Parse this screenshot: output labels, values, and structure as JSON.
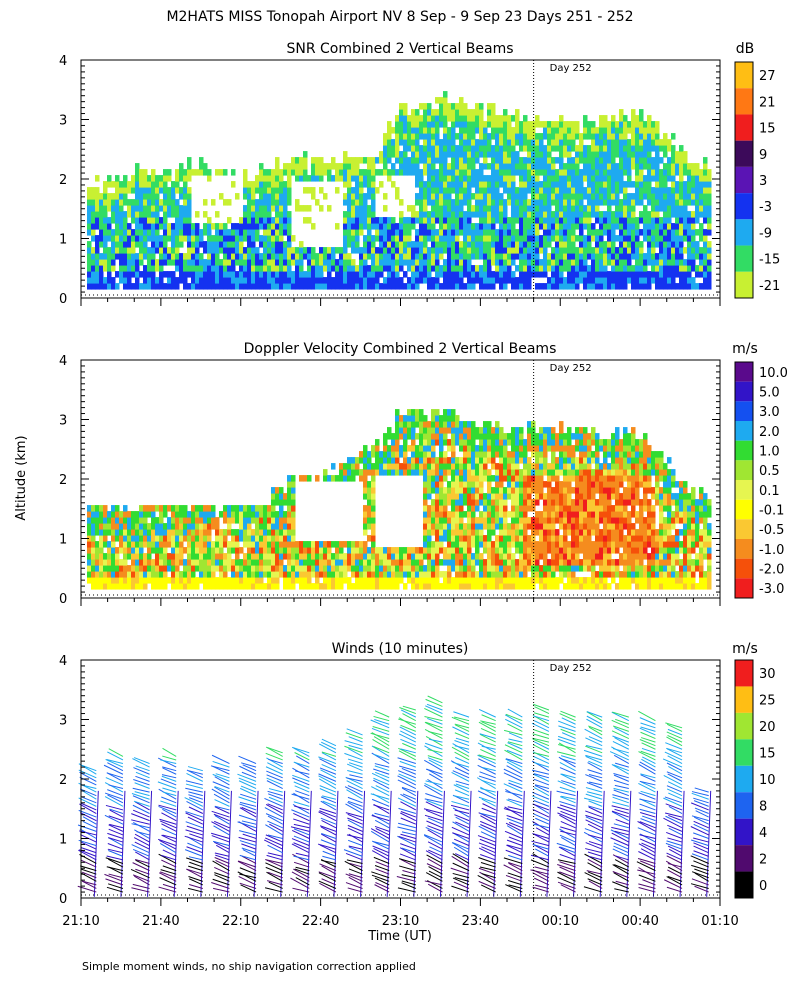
{
  "title": "M2HATS MISS Tonopah Airport NV   8 Sep -  9 Sep 23 Days 251 - 252",
  "footnote": "Simple moment winds, no ship navigation correction applied",
  "ylabel": "Altitude (km)",
  "xlabel": "Time (UT)",
  "x_ticks": [
    "21:10",
    "21:40",
    "22:10",
    "22:40",
    "23:10",
    "23:40",
    "00:10",
    "00:40",
    "01:10"
  ],
  "y_ticks": [
    "0",
    "1",
    "2",
    "3",
    "4"
  ],
  "day_marker_label": "Day 252",
  "panels": [
    {
      "title": "SNR Combined 2 Vertical Beams",
      "unit": "dB",
      "colorbar_labels": [
        "27",
        "21",
        "15",
        "9",
        "3",
        "-3",
        "-9",
        "-15",
        "-21"
      ]
    },
    {
      "title": "Doppler Velocity Combined 2 Vertical Beams",
      "unit": "m/s",
      "colorbar_labels": [
        "10.0",
        "5.0",
        "3.0",
        "2.0",
        "1.0",
        "0.5",
        "0.1",
        "-0.1",
        "-0.5",
        "-1.0",
        "-2.0",
        "-3.0"
      ]
    },
    {
      "title": "Winds (10 minutes)",
      "unit": "m/s",
      "colorbar_labels": [
        "30",
        "25",
        "20",
        "15",
        "10",
        "8",
        "4",
        "2",
        "0"
      ]
    }
  ],
  "chart_data": [
    {
      "type": "heatmap",
      "title": "SNR Combined 2 Vertical Beams",
      "unit": "dB",
      "x_range": [
        "21:10",
        "01:10"
      ],
      "ylim": [
        0,
        4
      ],
      "day_marker_time": "00:00",
      "colorscale": [
        {
          "value": "-21",
          "color": "#c8f032"
        },
        {
          "value": "-15",
          "color": "#32dc64"
        },
        {
          "value": "-9",
          "color": "#1eaaf0"
        },
        {
          "value": "-3",
          "color": "#1432f0"
        },
        {
          "value": "3",
          "color": "#5a14b4"
        },
        {
          "value": "9",
          "color": "#3c0a5a"
        },
        {
          "value": "15",
          "color": "#f01e1e"
        },
        {
          "value": "21",
          "color": "#ff7814"
        },
        {
          "value": "27",
          "color": "#ffbe14"
        }
      ],
      "echo_top_km": [
        {
          "time": "21:10",
          "top": 1.9
        },
        {
          "time": "21:30",
          "top": 2.1
        },
        {
          "time": "21:50",
          "top": 2.2
        },
        {
          "time": "22:10",
          "top": 2.0
        },
        {
          "time": "22:30",
          "top": 2.3
        },
        {
          "time": "22:50",
          "top": 2.3
        },
        {
          "time": "23:00",
          "top": 2.4
        },
        {
          "time": "23:10",
          "top": 3.2
        },
        {
          "time": "23:30",
          "top": 3.3
        },
        {
          "time": "23:50",
          "top": 3.1
        },
        {
          "time": "00:00",
          "top": 3.0
        },
        {
          "time": "00:20",
          "top": 2.9
        },
        {
          "time": "00:40",
          "top": 3.1
        },
        {
          "time": "01:00",
          "top": 2.2
        }
      ]
    },
    {
      "type": "heatmap",
      "title": "Doppler Velocity Combined 2 Vertical Beams",
      "unit": "m/s",
      "x_range": [
        "21:10",
        "01:10"
      ],
      "ylim": [
        0,
        4
      ],
      "day_marker_time": "00:00",
      "colorscale": [
        {
          "value": "-3.0",
          "color": "#f01e1e"
        },
        {
          "value": "-2.0",
          "color": "#f5500a"
        },
        {
          "value": "-1.0",
          "color": "#f58c1e"
        },
        {
          "value": "-0.5",
          "color": "#fac832"
        },
        {
          "value": "-0.1",
          "color": "#ffff00"
        },
        {
          "value": "0.1",
          "color": "#e6f550"
        },
        {
          "value": "0.5",
          "color": "#a0e632"
        },
        {
          "value": "1.0",
          "color": "#32dc32"
        },
        {
          "value": "2.0",
          "color": "#1eaaf0"
        },
        {
          "value": "3.0",
          "color": "#1450f0"
        },
        {
          "value": "5.0",
          "color": "#3214c8"
        },
        {
          "value": "10.0",
          "color": "#5a0a8c"
        }
      ],
      "echo_top_km": [
        {
          "time": "21:10",
          "top": 1.5
        },
        {
          "time": "21:30",
          "top": 1.5
        },
        {
          "time": "21:50",
          "top": 1.6
        },
        {
          "time": "22:10",
          "top": 1.8
        },
        {
          "time": "22:30",
          "top": 1.9
        },
        {
          "time": "22:50",
          "top": 2.2
        },
        {
          "time": "23:00",
          "top": 2.5
        },
        {
          "time": "23:10",
          "top": 3.1
        },
        {
          "time": "23:30",
          "top": 3.0
        },
        {
          "time": "23:50",
          "top": 2.8
        },
        {
          "time": "00:00",
          "top": 2.8
        },
        {
          "time": "00:20",
          "top": 2.8
        },
        {
          "time": "00:40",
          "top": 2.7
        },
        {
          "time": "01:00",
          "top": 1.7
        }
      ]
    },
    {
      "type": "barbs",
      "title": "Winds (10 minutes)",
      "unit": "m/s",
      "x_range": [
        "21:10",
        "01:10"
      ],
      "ylim": [
        0,
        4
      ],
      "day_marker_time": "00:00",
      "colorscale": [
        {
          "value": "0",
          "color": "#000000"
        },
        {
          "value": "2",
          "color": "#500a6e"
        },
        {
          "value": "4",
          "color": "#3214c8"
        },
        {
          "value": "8",
          "color": "#1e64f0"
        },
        {
          "value": "10",
          "color": "#1eaaf0"
        },
        {
          "value": "15",
          "color": "#32dc64"
        },
        {
          "value": "20",
          "color": "#a0e632"
        },
        {
          "value": "25",
          "color": "#ffbe14"
        },
        {
          "value": "30",
          "color": "#f01e1e"
        }
      ],
      "profile_times": [
        "21:15",
        "21:25",
        "21:35",
        "21:45",
        "21:55",
        "22:05",
        "22:15",
        "22:25",
        "22:35",
        "22:45",
        "22:55",
        "23:05",
        "23:15",
        "23:25",
        "23:35",
        "23:45",
        "23:55",
        "00:05",
        "00:15",
        "00:25",
        "00:35",
        "00:45",
        "00:55",
        "01:05"
      ],
      "profile_tops_km": [
        2.2,
        2.4,
        2.3,
        2.4,
        2.2,
        2.3,
        2.3,
        2.5,
        2.5,
        2.6,
        2.8,
        3.1,
        3.2,
        3.3,
        3.1,
        3.1,
        3.1,
        3.2,
        3.1,
        3.1,
        3.1,
        3.0,
        2.9,
        1.8
      ]
    }
  ]
}
